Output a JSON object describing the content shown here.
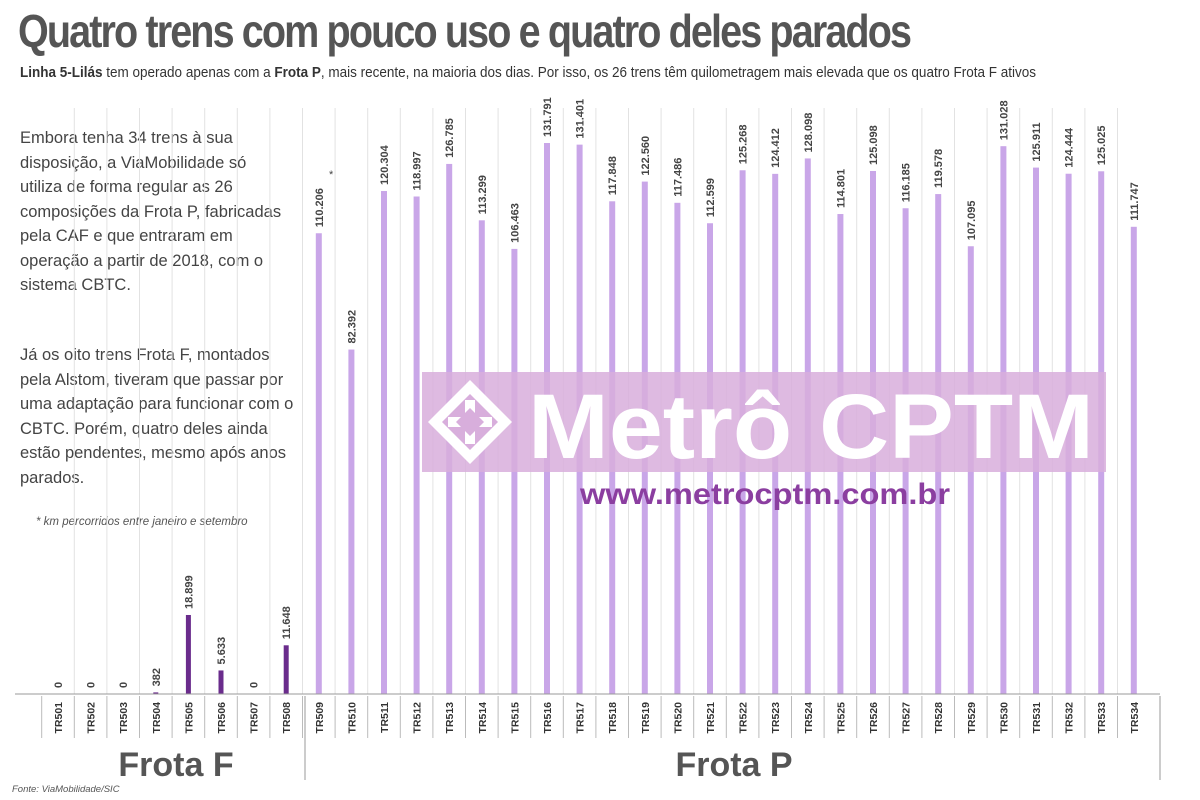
{
  "title": "Quatro trens com pouco uso e quatro deles parados",
  "subtitle": {
    "line_bold": "Linha 5-Lilás",
    "part1": " tem operado apenas com a ",
    "fleet_bold": "Frota P",
    "part2": ", mais recente, na maioria dos dias. Por isso, os 26 trens têm quilometragem mais elevada que os quatro Frota F ativos"
  },
  "paragraph1": "Embora tenha 34 trens à sua disposição, a ViaMobilidade só utiliza de forma regular as 26 composições da Frota P, fabricadas pela CAF e que entraram em operação a partir de 2018, com o sistema CBTC.",
  "paragraph2": "Já os oito trens Frota F, montados pela Alstom, tiveram que passar por uma adaptação para funcionar com o CBTC. Porém, quatro deles ainda estão pendentes, mesmo após anos parados.",
  "footnote": "* km percorridos entre janeiro e setembro",
  "asterisk": "*",
  "source": "Fonte: ViaMobilidade/SIC",
  "watermark": {
    "brand": "Metrô CPTM",
    "url": "www.metrocptm.com.br",
    "logo_icon": "metro-cptm-logo-icon"
  },
  "colors": {
    "frota_f": "#6a2c8c",
    "frota_p": "#c9a6e8",
    "watermark_band": "#d8aedc",
    "watermark_url": "#8b3ea0"
  },
  "chart_data": {
    "type": "bar",
    "ylim": [
      0,
      131791
    ],
    "categories": [
      "TR501",
      "TR502",
      "TR503",
      "TR504",
      "TR505",
      "TR506",
      "TR507",
      "TR508",
      "TR509",
      "TR510",
      "TR511",
      "TR512",
      "TR513",
      "TR514",
      "TR515",
      "TR516",
      "TR517",
      "TR518",
      "TR519",
      "TR520",
      "TR521",
      "TR522",
      "TR523",
      "TR524",
      "TR525",
      "TR526",
      "TR527",
      "TR528",
      "TR529",
      "TR530",
      "TR531",
      "TR532",
      "TR533",
      "TR534"
    ],
    "values": [
      0,
      0,
      0,
      382,
      18899,
      5633,
      0,
      11648,
      110206,
      82392,
      120304,
      118997,
      126785,
      113299,
      106463,
      131791,
      131401,
      117848,
      122560,
      117486,
      112599,
      125268,
      124412,
      128098,
      114801,
      125098,
      116185,
      119578,
      107095,
      131028,
      125911,
      124444,
      125025,
      111747
    ],
    "labels": [
      "0",
      "0",
      "0",
      "382",
      "18.899",
      "5.633",
      "0",
      "11.648",
      "110.206",
      "82.392",
      "120.304",
      "118.997",
      "126.785",
      "113.299",
      "106.463",
      "131.791",
      "131.401",
      "117.848",
      "122.560",
      "117.486",
      "112.599",
      "125.268",
      "124.412",
      "128.098",
      "114.801",
      "125.098",
      "116.185",
      "119.578",
      "107.095",
      "131.028",
      "125.911",
      "124.444",
      "125.025",
      "111.747"
    ],
    "groups": [
      {
        "name": "Frota F",
        "count": 8
      },
      {
        "name": "Frota P",
        "count": 26
      }
    ]
  }
}
